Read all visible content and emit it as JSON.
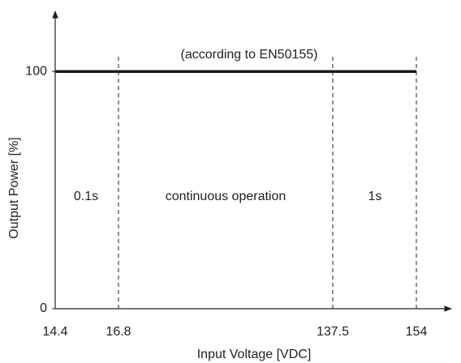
{
  "chart_data": {
    "type": "line",
    "xlabel": "Input Voltage [VDC]",
    "ylabel": "Output Power [%]",
    "annotations": [
      "(according to EN50155)",
      "0.1s",
      "continuous operation",
      "1s"
    ],
    "x": [
      14.4,
      154
    ],
    "series": [
      {
        "name": "Output Power",
        "color": "#1a1a1a",
        "values": [
          100,
          100
        ]
      }
    ],
    "xticks": [
      14.4,
      16.8,
      137.5,
      154
    ],
    "ylim": [
      0,
      125
    ],
    "yticks": [
      0,
      100
    ],
    "grid": false
  }
}
